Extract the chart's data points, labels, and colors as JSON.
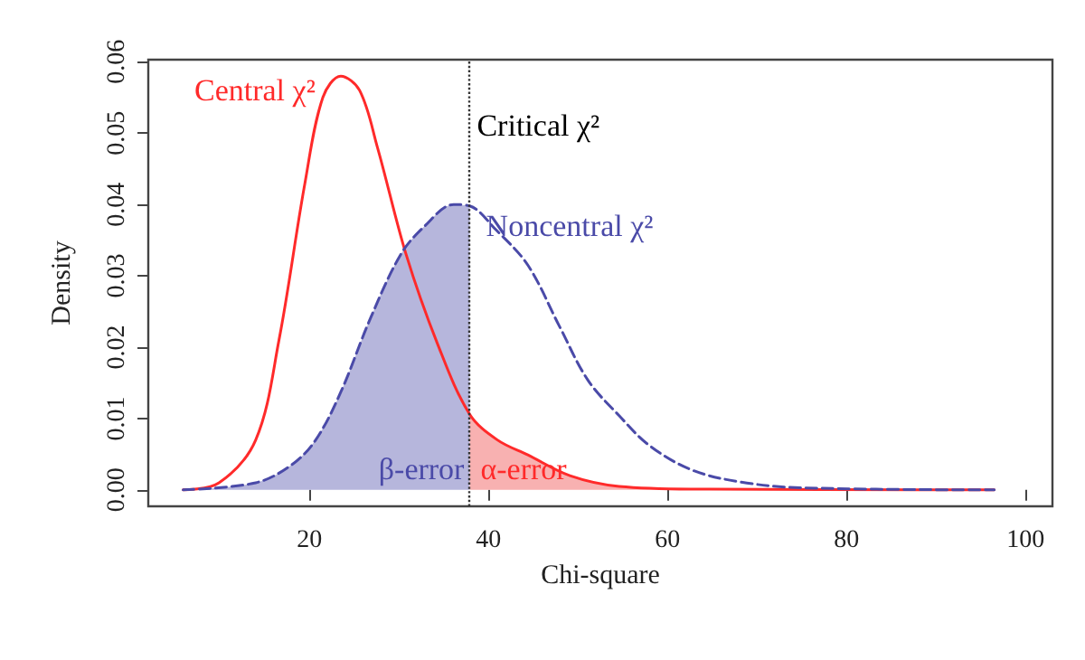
{
  "chart_data": {
    "type": "line",
    "xlabel": "Chi-square",
    "ylabel": "Density",
    "xlim": [
      2,
      103
    ],
    "ylim": [
      -0.0023,
      0.0603
    ],
    "xticks": [
      20,
      40,
      60,
      80,
      100
    ],
    "yticks": [
      {
        "value": 0,
        "label": "0.00"
      },
      {
        "value": 0.01,
        "label": "0.01"
      },
      {
        "value": 0.02,
        "label": "0.02"
      },
      {
        "value": 0.03,
        "label": "0.03"
      },
      {
        "value": 0.04,
        "label": "0.04"
      },
      {
        "value": 0.05,
        "label": "0.05"
      },
      {
        "value": 0.06,
        "label": "0.06"
      }
    ],
    "grid": false,
    "legend": false,
    "marker": "none",
    "series": [
      {
        "type": "area",
        "color": "#aeaed8",
        "x": [
          5.9,
          14.0,
          18.0,
          20.7,
          23.5,
          26.8,
          30.2,
          32.9,
          36.1,
          37.9
        ],
        "values": [
          0,
          0.001,
          0.0035,
          0.007,
          0.0137,
          0.024,
          0.033,
          0.037,
          0.04,
          0.0398
        ]
      },
      {
        "type": "area",
        "color": "#f7a8a8",
        "x": [
          37.9,
          41.0,
          44.4,
          49.1,
          54.6,
          64.7,
          96.5
        ],
        "values": [
          0.0106,
          0.007,
          0.0049,
          0.002,
          0.0005,
          0.0001,
          0
        ]
      },
      {
        "name": "Central χ²",
        "color": "#ff2a2a",
        "line_style": "solid",
        "x": [
          5.9,
          9.9,
          14.0,
          16.6,
          19.5,
          21.5,
          23.5,
          25.6,
          27.6,
          30.8,
          34.3,
          37.9,
          41.0,
          44.4,
          49.1,
          54.6,
          64.7,
          96.5
        ],
        "values": [
          0,
          0.001,
          0.007,
          0.021,
          0.043,
          0.055,
          0.058,
          0.056,
          0.048,
          0.033,
          0.0205,
          0.0106,
          0.007,
          0.0049,
          0.002,
          0.0005,
          0.0001,
          0
        ]
      },
      {
        "name": "Noncentral χ²",
        "color": "#4a4aa8",
        "line_style": "dashed",
        "x": [
          5.9,
          14.0,
          18.0,
          20.7,
          23.5,
          26.8,
          30.2,
          32.9,
          36.1,
          37.9,
          40.8,
          44.4,
          47.9,
          51.1,
          54.6,
          58.0,
          62.7,
          68.2,
          74.8,
          96.5
        ],
        "values": [
          0,
          0.001,
          0.0035,
          0.007,
          0.0137,
          0.024,
          0.033,
          0.037,
          0.04,
          0.0398,
          0.0365,
          0.0315,
          0.023,
          0.0154,
          0.0104,
          0.0062,
          0.0028,
          0.0011,
          0.0003,
          0
        ]
      }
    ],
    "ref_lines": [
      {
        "axis": "x",
        "value": 37.9,
        "label": "Critical χ²",
        "color": "#333333",
        "line_style": "dotted"
      }
    ],
    "annotations": [
      "β-error",
      "α-error"
    ]
  }
}
